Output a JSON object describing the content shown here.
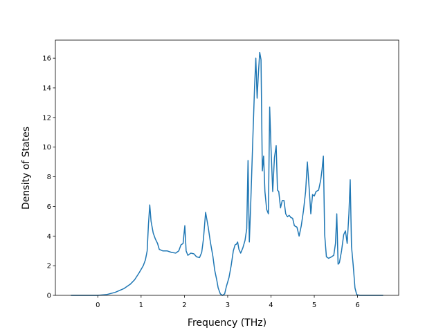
{
  "chart_data": {
    "type": "line",
    "xlabel": "Frequency (THz)",
    "ylabel": "Density of States",
    "x": [
      -0.62,
      0,
      0.2,
      0.4,
      0.6,
      0.75,
      0.85,
      0.95,
      1.05,
      1.1,
      1.14,
      1.17,
      1.2,
      1.23,
      1.28,
      1.33,
      1.38,
      1.42,
      1.5,
      1.6,
      1.7,
      1.8,
      1.87,
      1.92,
      1.97,
      2.01,
      2.04,
      2.08,
      2.15,
      2.22,
      2.28,
      2.35,
      2.4,
      2.44,
      2.49,
      2.55,
      2.6,
      2.66,
      2.7,
      2.75,
      2.78,
      2.83,
      2.88,
      2.93,
      2.97,
      3.03,
      3.08,
      3.13,
      3.17,
      3.2,
      3.23,
      3.26,
      3.3,
      3.35,
      3.4,
      3.44,
      3.47,
      3.5,
      3.53,
      3.58,
      3.62,
      3.65,
      3.68,
      3.71,
      3.74,
      3.77,
      3.8,
      3.83,
      3.86,
      3.9,
      3.94,
      3.97,
      4.0,
      4.04,
      4.08,
      4.12,
      4.15,
      4.18,
      4.22,
      4.26,
      4.3,
      4.34,
      4.38,
      4.42,
      4.46,
      4.5,
      4.54,
      4.6,
      4.65,
      4.7,
      4.75,
      4.8,
      4.84,
      4.88,
      4.92,
      4.96,
      5.0,
      5.04,
      5.1,
      5.15,
      5.18,
      5.21,
      5.24,
      5.28,
      5.33,
      5.4,
      5.45,
      5.49,
      5.52,
      5.55,
      5.58,
      5.63,
      5.68,
      5.72,
      5.76,
      5.8,
      5.83,
      5.86,
      5.9,
      5.94,
      5.98,
      6.05,
      6.59
    ],
    "values": [
      0,
      0,
      0.05,
      0.2,
      0.45,
      0.75,
      1.05,
      1.5,
      2.0,
      2.4,
      3.0,
      4.8,
      6.1,
      5.0,
      4.2,
      3.8,
      3.5,
      3.1,
      3.0,
      3.0,
      2.9,
      2.85,
      3.0,
      3.4,
      3.5,
      4.7,
      3.0,
      2.7,
      2.85,
      2.8,
      2.6,
      2.55,
      2.9,
      3.8,
      5.6,
      4.6,
      3.6,
      2.6,
      1.7,
      1.0,
      0.5,
      0.1,
      0,
      0.1,
      0.6,
      1.2,
      2.0,
      3.0,
      3.4,
      3.45,
      3.6,
      3.1,
      2.85,
      3.2,
      3.7,
      4.5,
      9.1,
      3.6,
      6.0,
      10.5,
      14.0,
      16.0,
      13.3,
      15.0,
      16.4,
      15.9,
      8.4,
      9.4,
      7.0,
      5.8,
      5.5,
      12.7,
      10.0,
      7.0,
      9.3,
      10.1,
      7.1,
      7.0,
      5.9,
      6.4,
      6.4,
      5.5,
      5.3,
      5.4,
      5.25,
      5.2,
      4.7,
      4.6,
      4.0,
      4.7,
      5.7,
      7.0,
      9.0,
      7.3,
      5.5,
      6.8,
      6.7,
      7.0,
      7.1,
      7.8,
      8.5,
      9.4,
      4.1,
      2.6,
      2.5,
      2.6,
      2.7,
      3.5,
      5.5,
      2.1,
      2.2,
      3.0,
      4.1,
      4.35,
      3.5,
      5.5,
      7.8,
      3.3,
      2.0,
      0.5,
      0.05,
      0,
      0
    ],
    "color": "#1f77b4",
    "xlim": [
      -0.98,
      6.95
    ],
    "xticks": [
      0,
      1,
      2,
      3,
      4,
      5,
      6
    ],
    "ylim": [
      0,
      17.22
    ],
    "yticks": [
      0,
      2,
      4,
      6,
      8,
      10,
      12,
      14,
      16
    ]
  }
}
